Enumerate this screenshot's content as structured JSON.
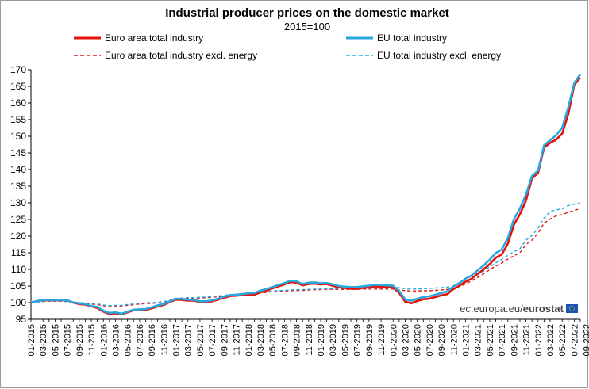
{
  "chart_data": {
    "type": "line",
    "title": "Industrial producer prices on the domestic market",
    "subtitle": "2015=100",
    "source": {
      "prefix": "ec.europa.eu/",
      "brand": "eurostat"
    },
    "ylim": [
      95,
      170
    ],
    "yticks": [
      95,
      100,
      105,
      110,
      115,
      120,
      125,
      130,
      135,
      140,
      145,
      150,
      155,
      160,
      165,
      170
    ],
    "x_tick_labels": [
      "01-2015",
      "03-2015",
      "05-2015",
      "07-2015",
      "09-2015",
      "11-2015",
      "01-2016",
      "03-2016",
      "05-2016",
      "07-2016",
      "09-2016",
      "11-2016",
      "01-2017",
      "03-2017",
      "05-2017",
      "07-2017",
      "09-2017",
      "11-2017",
      "01-2018",
      "03-2018",
      "05-2018",
      "07-2018",
      "09-2018",
      "11-2018",
      "01-2019",
      "03-2019",
      "05-2019",
      "07-2019",
      "09-2019",
      "11-2019",
      "01-2020",
      "03-2020",
      "05-2020",
      "07-2020",
      "09-2020",
      "11-2020",
      "01-2021",
      "03-2021",
      "05-2021",
      "07-2021",
      "09-2021",
      "11-2021",
      "01-2022",
      "03-2022",
      "05-2022",
      "07-2022",
      "09-2022"
    ],
    "series": [
      {
        "name": "Euro area total industry",
        "color": "#e3120b",
        "dash": "solid",
        "values": [
          100,
          100.5,
          100.7,
          100.7,
          100.7,
          100.7,
          100.7,
          100,
          99.6,
          99.4,
          98.9,
          98.4,
          97.3,
          96.6,
          96.8,
          96.5,
          97.1,
          97.7,
          97.8,
          97.8,
          98.3,
          98.9,
          99.3,
          100.2,
          100.9,
          100.8,
          100.6,
          100.6,
          100.2,
          100.1,
          100.4,
          100.9,
          101.5,
          102,
          102.1,
          102.3,
          102.4,
          102.4,
          103.1,
          103.6,
          104.3,
          104.9,
          105.5,
          106.2,
          106,
          105.2,
          105.6,
          105.7,
          105.5,
          105.6,
          105.1,
          104.6,
          104.4,
          104.2,
          104.2,
          104.4,
          104.6,
          104.9,
          104.8,
          104.7,
          104.6,
          102.9,
          100.3,
          99.8,
          100.5,
          101,
          101.2,
          101.7,
          102.2,
          102.6,
          104.1,
          105.1,
          106.3,
          107.2,
          108.7,
          110,
          111.6,
          113.5,
          114.5,
          117.7,
          123.4,
          126.6,
          130.7,
          137.3,
          139,
          146.6,
          148,
          149,
          150.8,
          156.6,
          165.4,
          167.7
        ]
      },
      {
        "name": "EU total industry",
        "color": "#29a8e0",
        "dash": "solid",
        "values": [
          100,
          100.5,
          100.8,
          100.8,
          100.8,
          100.8,
          100.7,
          100.1,
          99.8,
          99.6,
          99,
          98.7,
          97.6,
          96.9,
          97.1,
          96.7,
          97.3,
          97.9,
          98,
          98.1,
          98.6,
          99.2,
          99.6,
          100.4,
          101.2,
          101.1,
          100.9,
          100.8,
          100.4,
          100.4,
          100.7,
          101.2,
          101.8,
          102.3,
          102.4,
          102.6,
          102.8,
          102.9,
          103.6,
          104.1,
          104.7,
          105.3,
          105.9,
          106.6,
          106.4,
          105.6,
          106,
          106.1,
          105.8,
          105.9,
          105.5,
          105,
          104.8,
          104.7,
          104.7,
          104.9,
          105.1,
          105.4,
          105.3,
          105.2,
          105.1,
          103.5,
          101,
          100.6,
          101.2,
          101.7,
          101.9,
          102.4,
          102.9,
          103.4,
          104.9,
          105.9,
          107.2,
          108.2,
          109.7,
          111.2,
          112.9,
          114.9,
          116,
          119.4,
          125.1,
          128.3,
          132.5,
          138.1,
          139.7,
          147.3,
          148.8,
          150.3,
          152.6,
          158.6,
          166,
          168.6
        ]
      },
      {
        "name": "Euro area total industry excl. energy",
        "color": "#e3120b",
        "dash": "dashed",
        "values": [
          100,
          100.2,
          100.4,
          100.5,
          100.5,
          100.5,
          100.3,
          100.1,
          99.9,
          99.8,
          99.6,
          99.4,
          99.1,
          98.9,
          99,
          99,
          99.2,
          99.4,
          99.6,
          99.7,
          99.8,
          99.9,
          100.1,
          100.5,
          100.9,
          101.2,
          101.3,
          101.3,
          101.4,
          101.5,
          101.6,
          101.8,
          102,
          102.2,
          102.3,
          102.4,
          102.6,
          102.8,
          103,
          103.1,
          103.3,
          103.4,
          103.5,
          103.6,
          103.7,
          103.7,
          103.8,
          103.9,
          103.9,
          104,
          104,
          104,
          104,
          104,
          104,
          104.1,
          104.1,
          104.1,
          104.1,
          104.1,
          104.1,
          103.9,
          103.6,
          103.5,
          103.5,
          103.6,
          103.6,
          103.7,
          103.8,
          104,
          104.3,
          104.9,
          105.6,
          106.6,
          107.6,
          108.7,
          109.9,
          111,
          111.9,
          113.1,
          114.1,
          115,
          117.5,
          118.8,
          120.9,
          123.9,
          125.1,
          126.1,
          126.4,
          127.2,
          127.7,
          128.3
        ]
      },
      {
        "name": "EU total industry excl. energy",
        "color": "#29a8e0",
        "dash": "dashed",
        "values": [
          100,
          100.2,
          100.3,
          100.4,
          100.4,
          100.4,
          100.3,
          100.1,
          100,
          99.9,
          99.8,
          99.6,
          99.3,
          99.1,
          99.2,
          99.2,
          99.4,
          99.6,
          99.8,
          99.9,
          100,
          100.1,
          100.3,
          100.7,
          101.1,
          101.4,
          101.5,
          101.5,
          101.6,
          101.7,
          101.8,
          102,
          102.2,
          102.4,
          102.5,
          102.6,
          102.8,
          103,
          103.2,
          103.3,
          103.5,
          103.6,
          103.7,
          103.8,
          103.9,
          103.9,
          104,
          104.1,
          104.1,
          104.2,
          104.2,
          104.3,
          104.3,
          104.3,
          104.3,
          104.4,
          104.4,
          104.5,
          104.5,
          104.6,
          104.6,
          104.5,
          104.2,
          104.1,
          104.1,
          104.2,
          104.3,
          104.4,
          104.5,
          104.7,
          105,
          105.6,
          106.4,
          107.4,
          108.4,
          109.5,
          110.8,
          112,
          113,
          114.2,
          115.3,
          116.2,
          118.8,
          120.2,
          122.4,
          125.4,
          127.4,
          127.9,
          128.2,
          129.2,
          129.6,
          129.9
        ]
      }
    ]
  }
}
